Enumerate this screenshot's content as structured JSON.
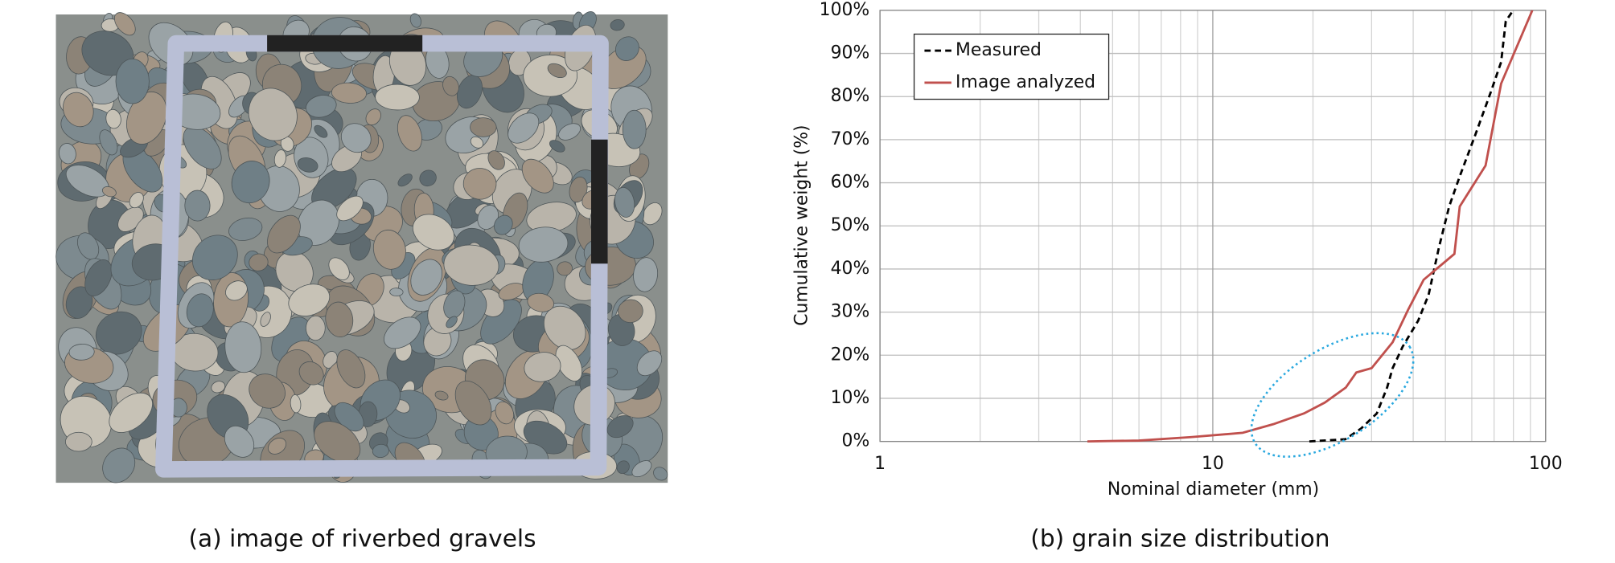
{
  "captions": [
    "(a) image of riverbed gravels",
    "(b) grain size distribution"
  ],
  "chart_data": {
    "type": "line",
    "xlabel": "Nominal diameter (mm)",
    "ylabel": "Cumulative weight (%)",
    "xscale": "log",
    "xlim": [
      1,
      100
    ],
    "xticks": [
      1,
      10,
      100
    ],
    "xminor": [
      2,
      3,
      4,
      5,
      6,
      7,
      8,
      9,
      20,
      30,
      40,
      50,
      60,
      70,
      80,
      90
    ],
    "ylim": [
      0,
      100
    ],
    "yticks": [
      {
        "value": 0,
        "label": "0%"
      },
      {
        "value": 10,
        "label": "10%"
      },
      {
        "value": 20,
        "label": "20%"
      },
      {
        "value": 30,
        "label": "30%"
      },
      {
        "value": 40,
        "label": "40%"
      },
      {
        "value": 50,
        "label": "50%"
      },
      {
        "value": 60,
        "label": "60%"
      },
      {
        "value": 70,
        "label": "70%"
      },
      {
        "value": 80,
        "label": "80%"
      },
      {
        "value": 90,
        "label": "90%"
      },
      {
        "value": 100,
        "label": "100%"
      }
    ],
    "grid": true,
    "legend": "upper left",
    "series": [
      {
        "name": "Measured",
        "color": "#000000",
        "dash": true,
        "x": [
          19.5,
          25,
          27.9,
          31.1,
          33.4,
          34.7,
          37.2,
          41.4,
          44.5,
          47.8,
          51.3,
          55.2,
          61.4,
          68.4,
          73.5,
          75.9,
          79.9
        ],
        "values": [
          0,
          0.5,
          3,
          6.5,
          12.5,
          17,
          22,
          28,
          34,
          45,
          54.5,
          61.5,
          71,
          81,
          88,
          97.5,
          100
        ]
      },
      {
        "name": "Image analyzed",
        "color": "#c0504d",
        "dash": false,
        "x": [
          4.2,
          6.0,
          8.6,
          12.3,
          15.2,
          18.8,
          21.7,
          25.1,
          27.0,
          30.0,
          34.7,
          38.6,
          43.0,
          53.2,
          55.2,
          66.0,
          73.5,
          91.2
        ],
        "values": [
          0,
          0.2,
          1,
          2,
          4,
          6.5,
          9,
          12.5,
          16,
          17,
          23,
          30.5,
          37.5,
          43.5,
          54.5,
          64,
          83,
          100
        ]
      }
    ]
  }
}
